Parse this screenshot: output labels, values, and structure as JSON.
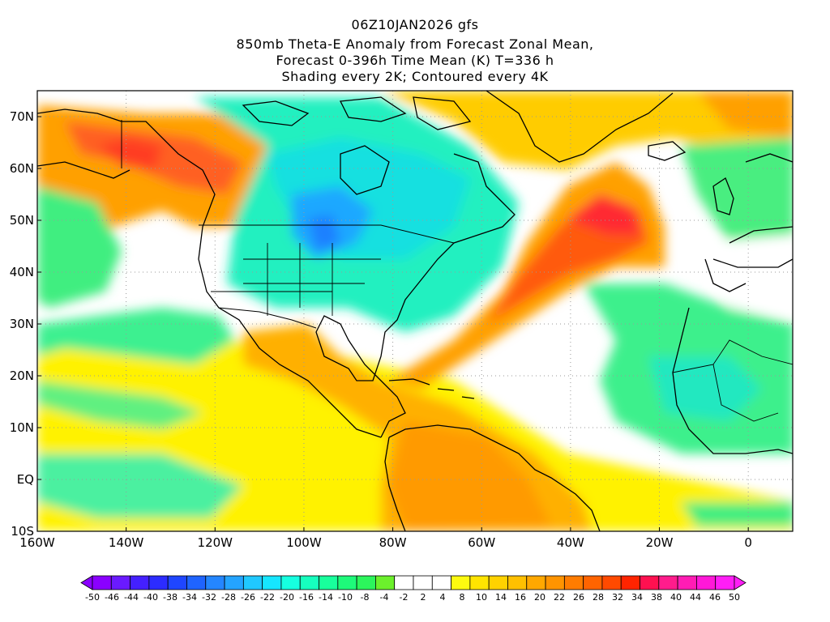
{
  "title": {
    "line1": "06Z10JAN2026 gfs",
    "line2": "850mb Theta-E Anomaly from Forecast Zonal Mean,",
    "line3": "Forecast 0-396h Time Mean (K) T=336 h",
    "line4": "Shading every 2K; Contoured every 4K"
  },
  "map": {
    "lon_range": [
      -160,
      10
    ],
    "lat_range": [
      -10,
      75
    ],
    "lon_ticks": [
      "160W",
      "140W",
      "120W",
      "100W",
      "80W",
      "60W",
      "40W",
      "20W",
      "0"
    ],
    "lat_ticks": [
      "70N",
      "60N",
      "50N",
      "40N",
      "30N",
      "20N",
      "10N",
      "EQ",
      "10S"
    ]
  },
  "colorbar": {
    "labels": [
      "-50",
      "-46",
      "-44",
      "-40",
      "-38",
      "-34",
      "-32",
      "-28",
      "-26",
      "-22",
      "-20",
      "-16",
      "-14",
      "-10",
      "-8",
      "-4",
      "-2",
      "2",
      "4",
      "8",
      "10",
      "14",
      "16",
      "20",
      "22",
      "26",
      "28",
      "32",
      "34",
      "38",
      "40",
      "44",
      "46",
      "50"
    ],
    "colors": [
      "#8a00ff",
      "#6a1aff",
      "#4420ff",
      "#2c2cff",
      "#1f46ff",
      "#1f64ff",
      "#2486ff",
      "#24a4ff",
      "#20c8ff",
      "#16e6ff",
      "#16ffe0",
      "#16ffbe",
      "#18ff9c",
      "#1efa7a",
      "#2cf55c",
      "#6cf02c",
      "#ffffff",
      "#ffffff",
      "#ffffff",
      "#fdfa10",
      "#ffe400",
      "#ffd200",
      "#ffc000",
      "#ffa800",
      "#ff9400",
      "#ff7c00",
      "#ff6400",
      "#ff4a00",
      "#ff2400",
      "#ff1050",
      "#ff1c8c",
      "#ff1cb4",
      "#ff18d8",
      "#ff1ef6"
    ]
  },
  "colors": {
    "ocean_green": "#3cf08c",
    "land_cyan": "#18f0d8",
    "cold_blue": "#1ea8ff",
    "warm_orange": "#ffa000",
    "hot_red": "#ff3c20",
    "yellow": "#fff500"
  }
}
